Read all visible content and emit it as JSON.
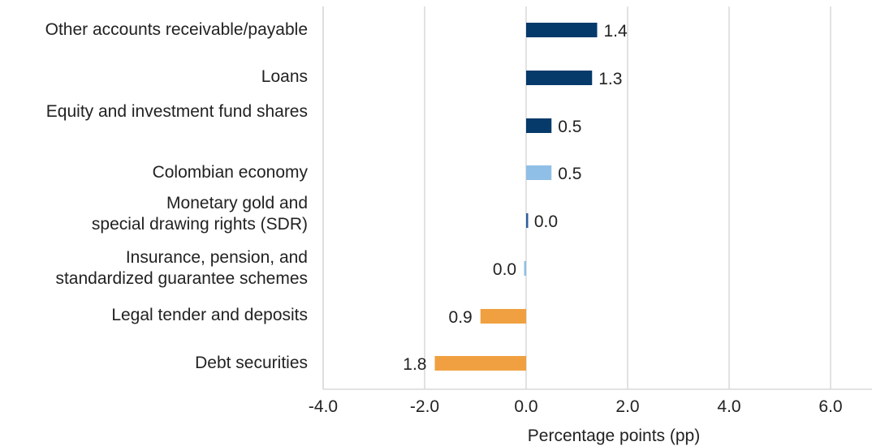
{
  "chart_data": {
    "type": "bar",
    "orientation": "horizontal",
    "xlabel": "Percentage points (pp)",
    "xlim": [
      -4.0,
      6.0
    ],
    "xticks": [
      -4.0,
      -2.0,
      0.0,
      2.0,
      4.0,
      6.0
    ],
    "xtick_labels": [
      "-4.0",
      "-2.0",
      "0.0",
      "2.0",
      "4.0",
      "6.0"
    ],
    "grid": true,
    "legend": "none",
    "bars": [
      {
        "label": [
          "Other accounts receivable/payable"
        ],
        "value": 1.4,
        "value_label": "1.4",
        "color": "#053a6b"
      },
      {
        "label": [
          "Loans"
        ],
        "value": 1.3,
        "value_label": "1.3",
        "color": "#053a6b"
      },
      {
        "label": [
          "Equity and investment fund shares"
        ],
        "value": 0.5,
        "value_label": "0.5",
        "color": "#053a6b"
      },
      {
        "label": [
          "Colombian economy"
        ],
        "value": 0.5,
        "value_label": "0.5",
        "color": "#8fbfe6"
      },
      {
        "label": [
          "Monetary gold and",
          "special drawing rights (SDR)"
        ],
        "value": 0.03,
        "value_label": "0.0",
        "color": "#2e5f9a"
      },
      {
        "label": [
          "Insurance, pension, and",
          "standardized guarantee schemes"
        ],
        "value": -0.03,
        "value_label": "0.0",
        "color": "#8fbfe6"
      },
      {
        "label": [
          "Legal tender and deposits"
        ],
        "value": -0.9,
        "value_label": "0.9",
        "color": "#f0a040"
      },
      {
        "label": [
          "Debt securities"
        ],
        "value": -1.8,
        "value_label": "1.8",
        "color": "#f0a040"
      }
    ]
  }
}
